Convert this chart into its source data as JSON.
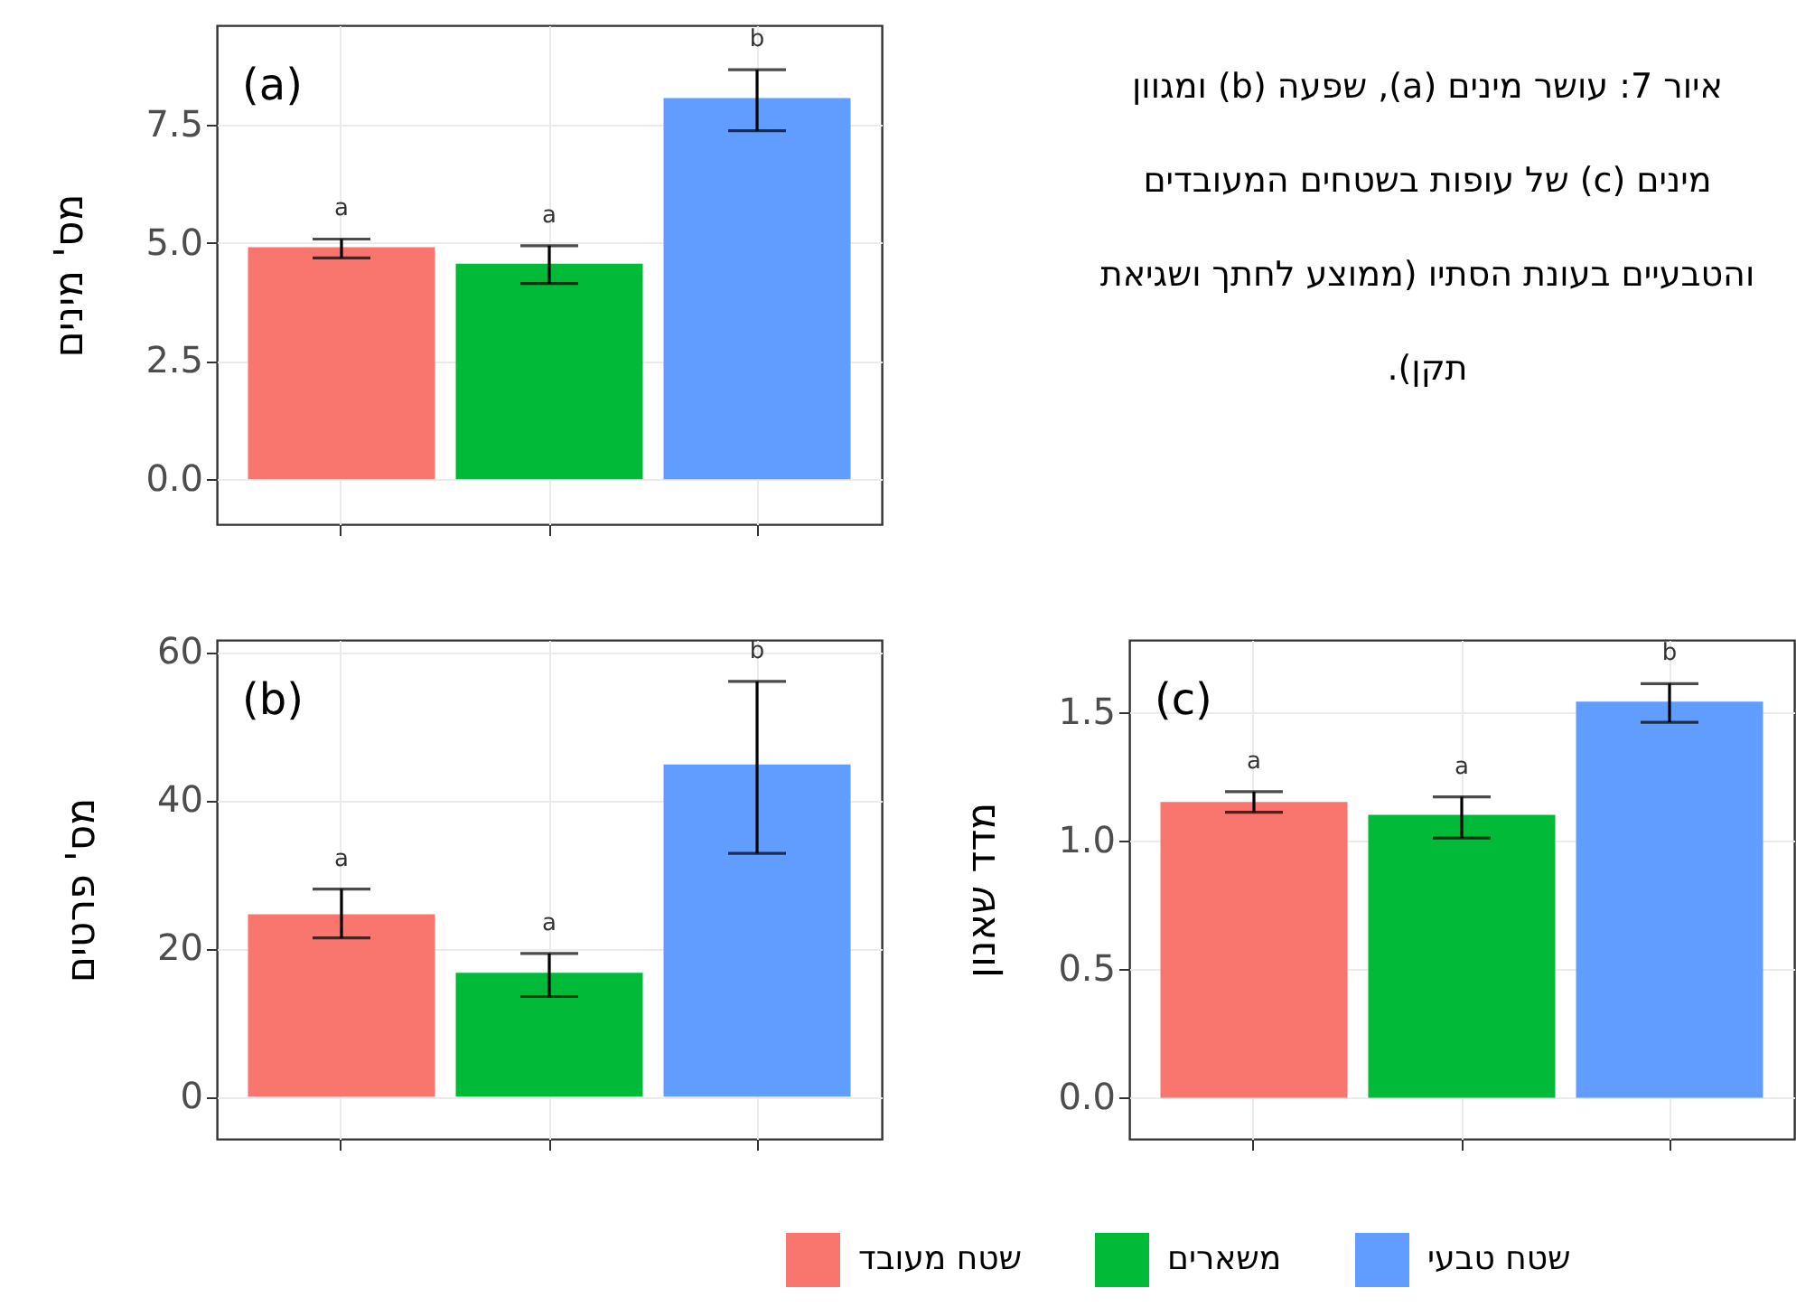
{
  "chart_data": [
    {
      "type": "bar",
      "title": "(a)",
      "ylabel": "מס' מינים",
      "categories": [
        null,
        null,
        null
      ],
      "colors": [
        "#f8766d",
        "#00ba38",
        "#619cff"
      ],
      "values": [
        4.91,
        4.56,
        8.06
      ],
      "errors": [
        [
          4.68,
          5.08
        ],
        [
          4.14,
          4.94
        ],
        [
          7.37,
          8.66
        ]
      ],
      "annotations": [
        "a",
        "a",
        "b"
      ],
      "ylim": [
        -0.95,
        9.6
      ],
      "yticks": [
        {
          "value": 0,
          "label": "0.0"
        },
        {
          "value": 2.5,
          "label": "2.5"
        },
        {
          "value": 5,
          "label": "5.0"
        },
        {
          "value": 7.5,
          "label": "7.5"
        }
      ],
      "grid": true,
      "tick_labels": "y"
    },
    {
      "type": "other",
      "title": "איור 7: עושר מינים (a), שפעה (b) ומגוון מינים (c) של עופות בשטחים המעובדים והטבעיים בעונת הסתיו (ממוצע לחתך ושגיאת תקן)."
    },
    {
      "type": "bar",
      "title": "(b)",
      "ylabel": "מס' פרטים",
      "categories": [
        null,
        null,
        null
      ],
      "colors": [
        "#f8766d",
        "#00ba38",
        "#619cff"
      ],
      "values": [
        24.6,
        16.7,
        44.8
      ],
      "errors": [
        [
          21.4,
          28.0
        ],
        [
          13.5,
          19.3
        ],
        [
          32.8,
          56.0
        ]
      ],
      "annotations": [
        "a",
        "a",
        "b"
      ],
      "ylim": [
        -5.7,
        61.6
      ],
      "yticks": [
        0,
        20,
        40,
        60
      ],
      "grid": true,
      "tick_labels": "y"
    },
    {
      "type": "bar",
      "title": "(c)",
      "ylabel": "מדד שאנון",
      "categories": [
        null,
        null,
        null
      ],
      "series": [
        {
          "name": "שטח מעובד",
          "color": "#f8766d",
          "values": [
            1.15,
            null,
            null
          ],
          "errors": [
            [
              1.11,
              1.19
            ],
            null,
            null
          ]
        },
        {
          "name": "משארים",
          "color": "#00ba38",
          "values": [
            null,
            1.1,
            null
          ],
          "errors": [
            null,
            [
              1.01,
              1.17
            ],
            null
          ]
        },
        {
          "name": "שטח טבעי",
          "color": "#619cff",
          "values": [
            null,
            null,
            1.54
          ],
          "errors": [
            null,
            null,
            [
              1.46,
              1.61
            ]
          ]
        }
      ],
      "annotations": [
        "a",
        "a",
        "b"
      ],
      "ylim": [
        -0.16,
        1.78
      ],
      "yticks": [
        {
          "value": 0,
          "label": "0.0"
        },
        {
          "value": 0.5,
          "label": "0.5"
        },
        {
          "value": 1,
          "label": "1.0"
        },
        {
          "value": 1.5,
          "label": "1.5"
        }
      ],
      "grid": true,
      "tick_labels": "y",
      "legend": "bottom"
    }
  ]
}
